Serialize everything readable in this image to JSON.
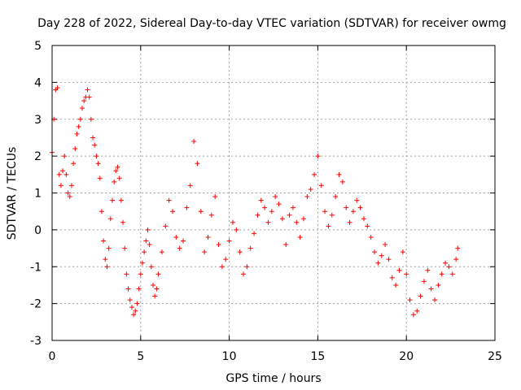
{
  "chart_data": {
    "type": "scatter",
    "title": "Day 228 of 2022, Sidereal Day-to-day VTEC variation (SDTVAR) for receiver owmg",
    "xlabel": "GPS time / hours",
    "ylabel": "SDTVAR / TECUs",
    "xlim": [
      0,
      25
    ],
    "ylim": [
      -3,
      5
    ],
    "x_ticks": [
      0,
      5,
      10,
      15,
      20,
      25
    ],
    "y_ticks": [
      -3,
      -2,
      -1,
      0,
      1,
      2,
      3,
      4,
      5
    ],
    "x_tick_labels": [
      "0",
      "5",
      "10",
      "15",
      "20",
      "25"
    ],
    "y_tick_labels": [
      "-3",
      "-2",
      "-1",
      "0",
      "1",
      "2",
      "3",
      "4",
      "5"
    ],
    "grid": true,
    "marker": "+",
    "color": "#ff0000",
    "series": [
      {
        "name": "SDTVAR",
        "x": [
          0.0,
          0.1,
          0.2,
          0.3,
          0.4,
          0.5,
          0.6,
          0.7,
          0.8,
          0.9,
          1.0,
          1.1,
          1.2,
          1.3,
          1.4,
          1.5,
          1.6,
          1.7,
          1.8,
          1.9,
          2.0,
          2.1,
          2.2,
          2.3,
          2.4,
          2.5,
          2.6,
          2.7,
          2.8,
          2.9,
          3.0,
          3.1,
          3.2,
          3.3,
          3.4,
          3.5,
          3.6,
          3.7,
          3.8,
          3.9,
          4.0,
          4.1,
          4.2,
          4.3,
          4.4,
          4.5,
          4.6,
          4.7,
          4.8,
          4.9,
          5.0,
          5.1,
          5.2,
          5.3,
          5.4,
          5.5,
          5.6,
          5.7,
          5.8,
          5.9,
          6.0,
          6.2,
          6.4,
          6.6,
          6.8,
          7.0,
          7.2,
          7.4,
          7.6,
          7.8,
          8.0,
          8.2,
          8.4,
          8.6,
          8.8,
          9.0,
          9.2,
          9.4,
          9.6,
          9.8,
          10.0,
          10.2,
          10.4,
          10.6,
          10.8,
          11.0,
          11.2,
          11.4,
          11.6,
          11.8,
          12.0,
          12.2,
          12.4,
          12.6,
          12.8,
          13.0,
          13.2,
          13.4,
          13.6,
          13.8,
          14.0,
          14.2,
          14.4,
          14.6,
          14.8,
          15.0,
          15.2,
          15.4,
          15.6,
          15.8,
          16.0,
          16.2,
          16.4,
          16.6,
          16.8,
          17.0,
          17.2,
          17.4,
          17.6,
          17.8,
          18.0,
          18.2,
          18.4,
          18.6,
          18.8,
          19.0,
          19.2,
          19.4,
          19.6,
          19.8,
          20.0,
          20.2,
          20.4,
          20.6,
          20.8,
          21.0,
          21.2,
          21.4,
          21.6,
          21.8,
          22.0,
          22.2,
          22.4,
          22.6,
          22.8,
          22.9
        ],
        "y": [
          2.1,
          3.0,
          3.8,
          3.85,
          1.5,
          1.2,
          1.6,
          2.0,
          1.5,
          1.0,
          0.9,
          1.2,
          1.8,
          2.2,
          2.6,
          2.8,
          3.0,
          3.3,
          3.5,
          3.6,
          3.8,
          3.6,
          3.0,
          2.5,
          2.3,
          2.0,
          1.8,
          1.4,
          0.5,
          -0.3,
          -0.8,
          -1.0,
          -0.5,
          0.3,
          0.8,
          1.3,
          1.6,
          1.7,
          1.4,
          0.8,
          0.2,
          -0.5,
          -1.2,
          -1.6,
          -1.9,
          -2.1,
          -2.3,
          -2.2,
          -2.0,
          -1.6,
          -1.2,
          -0.9,
          -0.6,
          -0.3,
          0.0,
          -0.4,
          -1.0,
          -1.5,
          -1.8,
          -1.6,
          -1.2,
          -0.6,
          0.1,
          0.8,
          0.5,
          -0.2,
          -0.5,
          -0.3,
          0.6,
          1.2,
          2.4,
          1.8,
          0.5,
          -0.6,
          -0.2,
          0.4,
          0.9,
          -0.4,
          -1.0,
          -0.8,
          -0.3,
          0.2,
          0.0,
          -0.6,
          -1.2,
          -1.0,
          -0.5,
          -0.1,
          0.4,
          0.8,
          0.6,
          0.2,
          0.5,
          0.9,
          0.7,
          0.3,
          -0.4,
          0.4,
          0.6,
          0.2,
          -0.2,
          0.3,
          0.9,
          1.1,
          1.5,
          2.0,
          1.2,
          0.5,
          0.1,
          0.4,
          0.9,
          1.5,
          1.3,
          0.6,
          0.2,
          0.5,
          0.8,
          0.6,
          0.3,
          0.1,
          -0.2,
          -0.6,
          -0.9,
          -0.7,
          -0.4,
          -0.8,
          -1.3,
          -1.5,
          -1.1,
          -0.6,
          -1.2,
          -1.9,
          -2.3,
          -2.2,
          -1.8,
          -1.4,
          -1.1,
          -1.6,
          -1.9,
          -1.5,
          -1.2,
          -0.9,
          -1.0,
          -1.2,
          -0.8,
          -0.5
        ]
      }
    ]
  }
}
